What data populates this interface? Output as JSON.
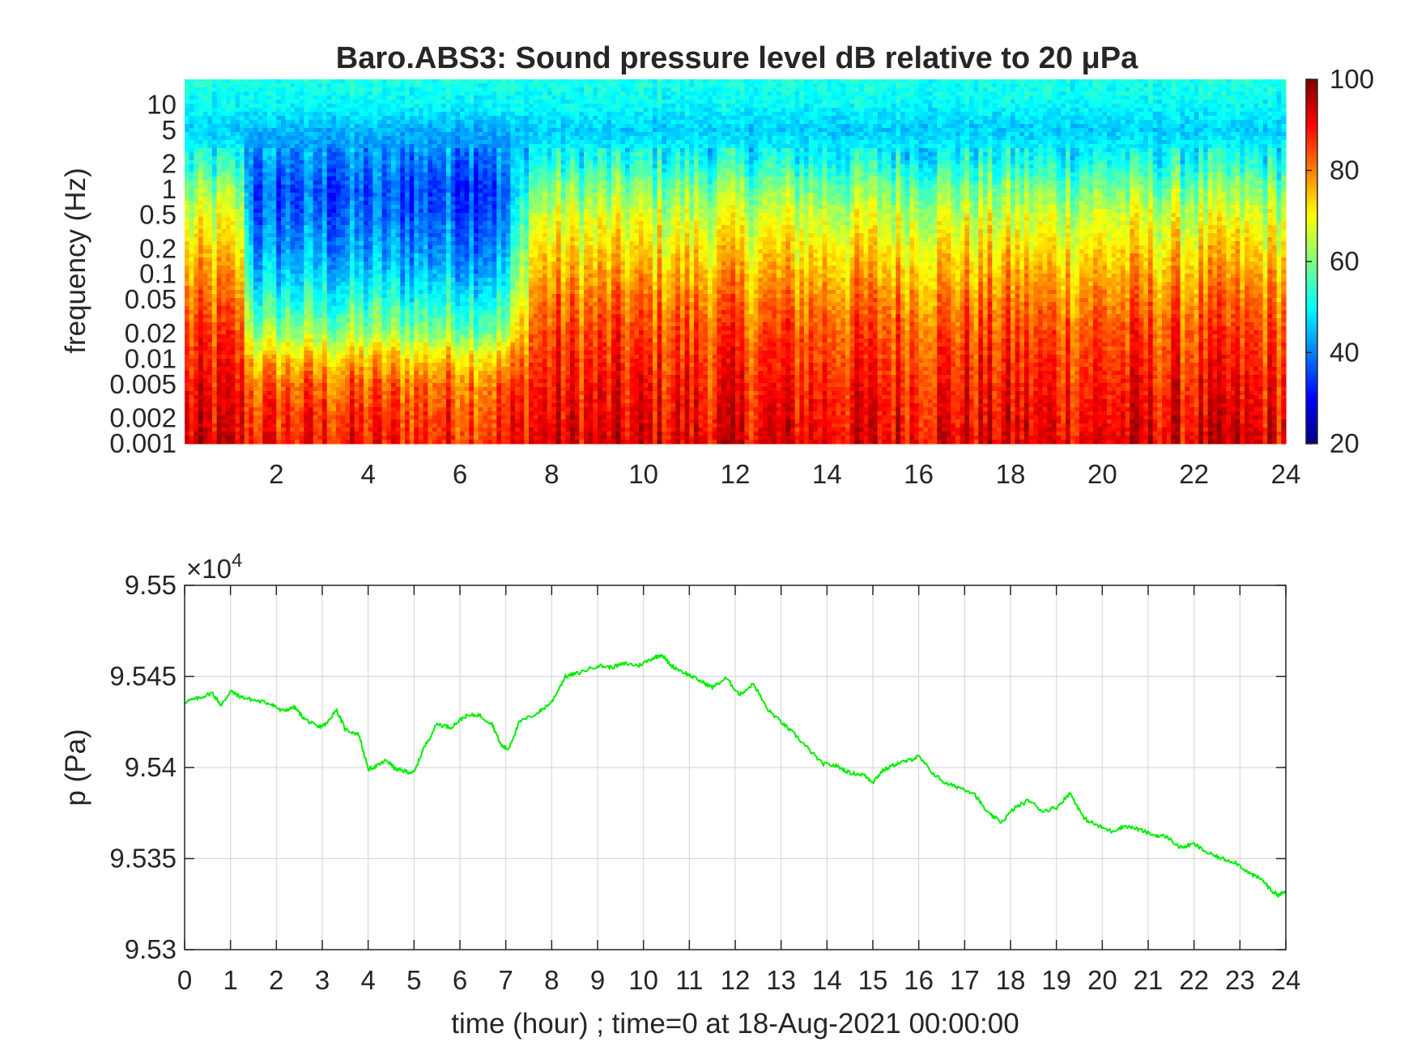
{
  "chart_data": [
    {
      "type": "heatmap",
      "title": "Baro.ABS3: Sound pressure level dB relative to 20 μPa",
      "ylabel": "frequency (Hz)",
      "xlabel": "",
      "xlim": [
        0,
        24
      ],
      "ylim": [
        0.001,
        20
      ],
      "yscale": "log",
      "xticks": [
        2,
        4,
        6,
        8,
        10,
        12,
        14,
        16,
        18,
        20,
        22,
        24
      ],
      "xtick_labels": [
        "2",
        "4",
        "6",
        "8",
        "10",
        "12",
        "14",
        "16",
        "18",
        "20",
        "22",
        "24"
      ],
      "yticks": [
        0.001,
        0.002,
        0.005,
        0.01,
        0.02,
        0.05,
        0.1,
        0.2,
        0.5,
        1,
        2,
        5,
        10
      ],
      "ytick_labels": [
        "0.001",
        "0.002",
        "0.005",
        "0.01",
        "0.02",
        "0.05",
        "0.1",
        "0.2",
        "0.5",
        "1",
        "2",
        "5",
        "10"
      ],
      "colormap": "jet",
      "colorbar": {
        "range": [
          20,
          100
        ],
        "ticks": [
          20,
          40,
          60,
          80,
          100
        ],
        "tick_labels": [
          "20",
          "40",
          "60",
          "80",
          "100"
        ]
      },
      "spectral_profile": {
        "description_hz": [
          0.001,
          0.002,
          0.005,
          0.01,
          0.02,
          0.05,
          0.1,
          0.2,
          0.5,
          1,
          2,
          5,
          10,
          20
        ],
        "quiet_period_db": [
          88,
          86,
          82,
          74,
          62,
          52,
          46,
          42,
          38,
          36,
          40,
          44,
          50,
          52
        ],
        "active_period_db": [
          92,
          90,
          88,
          86,
          84,
          80,
          76,
          72,
          66,
          60,
          52,
          46,
          50,
          52
        ],
        "quiet_hours": [
          1.5,
          7.0
        ]
      }
    },
    {
      "type": "line",
      "xlabel": "time (hour) ; time=0 at 18-Aug-2021 00:00:00",
      "ylabel": "p (Pa)",
      "exponent_label": "×10",
      "exponent_power": "4",
      "xlim": [
        0,
        24
      ],
      "ylim": [
        95300,
        95500
      ],
      "grid": true,
      "xticks": [
        0,
        1,
        2,
        3,
        4,
        5,
        6,
        7,
        8,
        9,
        10,
        11,
        12,
        13,
        14,
        15,
        16,
        17,
        18,
        19,
        20,
        21,
        22,
        23,
        24
      ],
      "xtick_labels": [
        "0",
        "1",
        "2",
        "3",
        "4",
        "5",
        "6",
        "7",
        "8",
        "9",
        "10",
        "11",
        "12",
        "13",
        "14",
        "15",
        "16",
        "17",
        "18",
        "19",
        "20",
        "21",
        "22",
        "23",
        "24"
      ],
      "yticks": [
        95300,
        95350,
        95400,
        95450,
        95500
      ],
      "ytick_labels": [
        "9.53",
        "9.535",
        "9.54",
        "9.545",
        "9.55"
      ],
      "line_color": "#00ee00",
      "x": [
        0,
        0.3,
        0.6,
        0.8,
        1.0,
        1.2,
        1.5,
        1.9,
        2.1,
        2.4,
        2.6,
        2.9,
        3.1,
        3.3,
        3.5,
        3.8,
        4.0,
        4.2,
        4.4,
        4.6,
        4.8,
        5.0,
        5.2,
        5.5,
        5.8,
        6.1,
        6.4,
        6.7,
        6.9,
        7.05,
        7.3,
        7.7,
        8.0,
        8.3,
        8.6,
        9.0,
        9.3,
        9.6,
        9.9,
        10.2,
        10.4,
        10.6,
        10.9,
        11.2,
        11.5,
        11.8,
        12.1,
        12.4,
        12.7,
        13.0,
        13.3,
        13.6,
        13.9,
        14.2,
        14.5,
        14.8,
        15.0,
        15.2,
        15.5,
        15.8,
        16.0,
        16.3,
        16.6,
        16.9,
        17.2,
        17.5,
        17.8,
        18.1,
        18.4,
        18.7,
        19.0,
        19.3,
        19.6,
        19.9,
        20.2,
        20.5,
        20.8,
        21.1,
        21.4,
        21.7,
        22.0,
        22.3,
        22.6,
        22.9,
        23.2,
        23.5,
        23.7,
        23.85,
        24.0
      ],
      "y": [
        95436,
        95438,
        95441,
        95434,
        95442,
        95439,
        95437,
        95435,
        95431,
        95433,
        95427,
        95422,
        95424,
        95432,
        95421,
        95418,
        95399,
        95401,
        95404,
        95399,
        95398,
        95397,
        95410,
        95424,
        95422,
        95428,
        95429,
        95424,
        95412,
        95410,
        95425,
        95430,
        95436,
        95450,
        95452,
        95456,
        95455,
        95457,
        95456,
        95460,
        95462,
        95456,
        95452,
        95448,
        95444,
        95449,
        95440,
        95446,
        95432,
        95425,
        95418,
        95410,
        95402,
        95401,
        95397,
        95396,
        95392,
        95398,
        95402,
        95404,
        95406,
        95397,
        95391,
        95389,
        95386,
        95375,
        95370,
        95378,
        95382,
        95376,
        95378,
        95386,
        95372,
        95368,
        95365,
        95368,
        95366,
        95363,
        95362,
        95356,
        95358,
        95353,
        95350,
        95348,
        95342,
        95338,
        95332,
        95330,
        95332
      ]
    }
  ]
}
